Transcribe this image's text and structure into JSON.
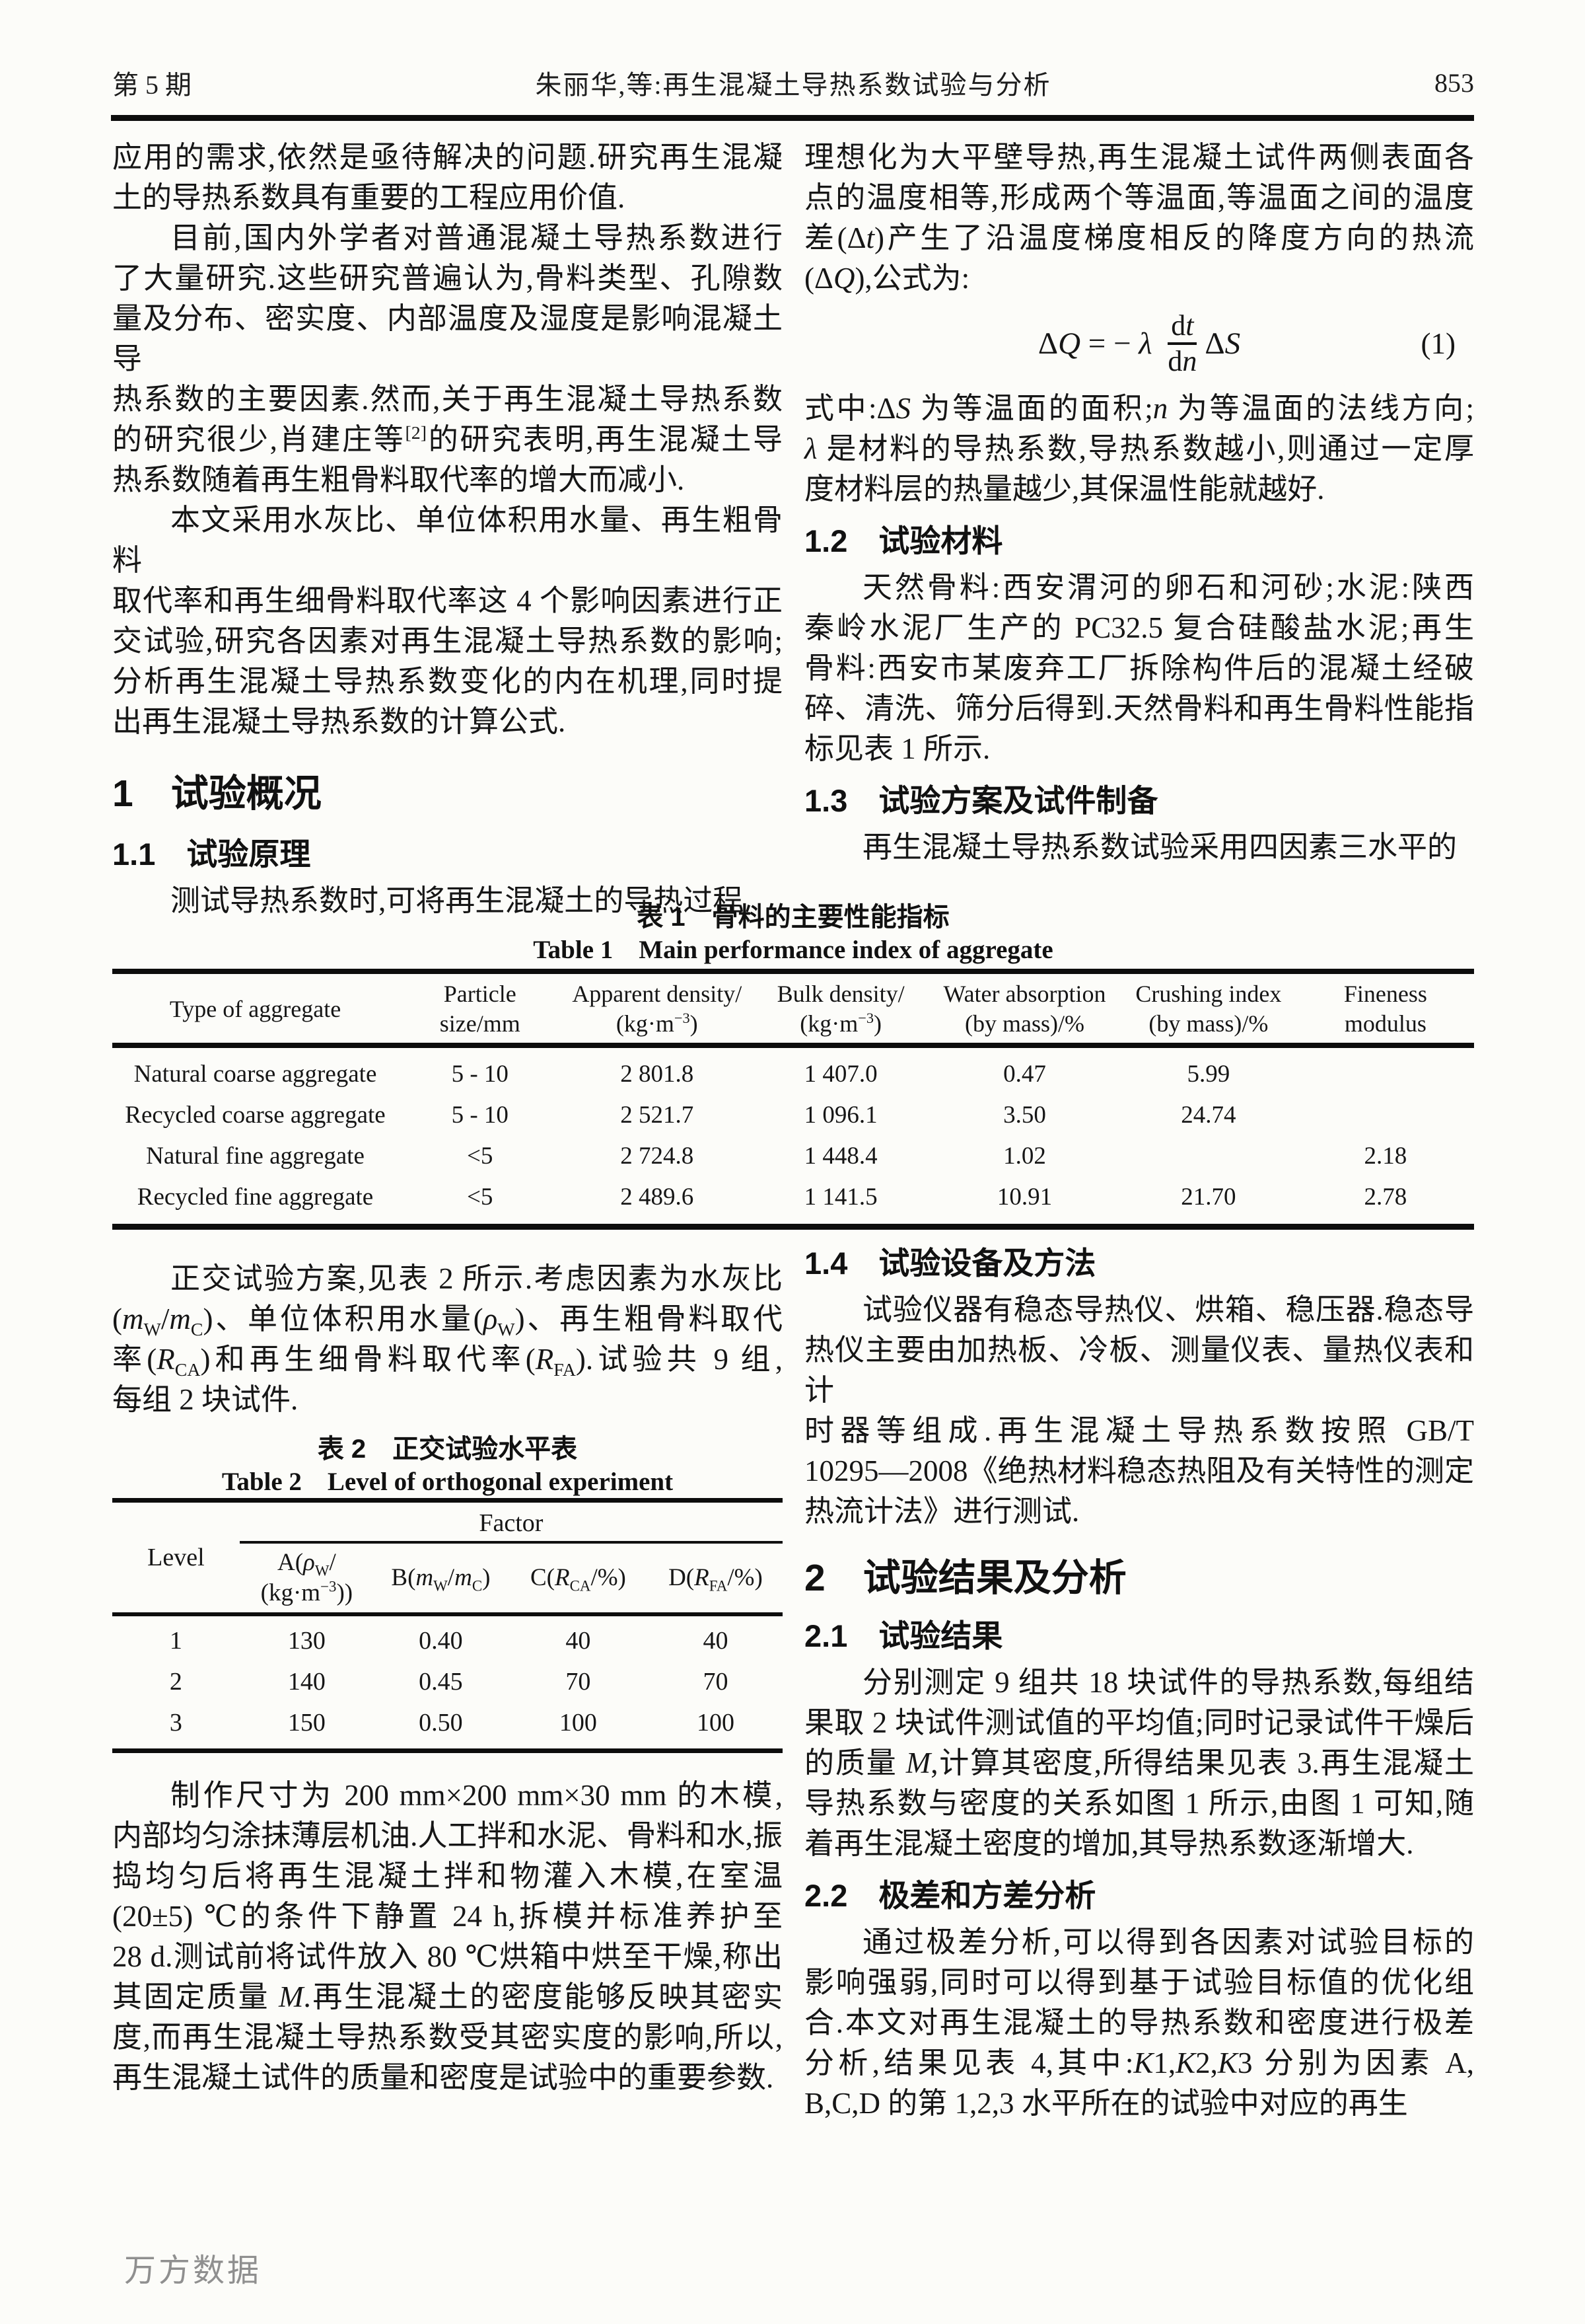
{
  "header": {
    "issue": "第 5 期",
    "title": "朱丽华,等:再生混凝土导热系数试验与分析",
    "page_number": "853"
  },
  "left_top": {
    "p1": [
      "应用的需求,依然是亟待解决的问题.研究再生混凝",
      "土的导热系数具有重要的工程应用价值."
    ],
    "p2": [
      "目前,国内外学者对普通混凝土导热系数进行",
      "了大量研究.这些研究普遍认为,骨料类型、孔隙数",
      "量及分布、密实度、内部温度及湿度是影响混凝土导",
      "热系数的主要因素.然而,关于再生混凝土导热系数",
      "的研究很少,肖建庄等^{[2]}的研究表明,再生混凝土导",
      "热系数随着再生粗骨料取代率的增大而减小."
    ],
    "p3": [
      "本文采用水灰比、单位体积用水量、再生粗骨料",
      "取代率和再生细骨料取代率这 4 个影响因素进行正",
      "交试验,研究各因素对再生混凝土导热系数的影响;",
      "分析再生混凝土导热系数变化的内在机理,同时提",
      "出再生混凝土导热系数的计算公式."
    ],
    "h1": "1　试验概况",
    "h11": "1.1　试验原理",
    "p4": [
      "测试导热系数时,可将再生混凝土的导热过程"
    ]
  },
  "right_top": {
    "p1": [
      "理想化为大平壁导热,再生混凝土试件两侧表面各",
      "点的温度相等,形成两个等温面,等温面之间的温度",
      "差(Δ*t*)产生了沿温度梯度相反的降度方向的热流",
      "(Δ*Q*),公式为:"
    ],
    "formula": {
      "lhs": "Δ*Q* = − *λ* ",
      "numerator": "d*t*",
      "denominator": "d*n*",
      "rhs": "Δ*S*",
      "number": "(1)"
    },
    "p2": [
      "式中:Δ*S* 为等温面的面积;*n* 为等温面的法线方向;",
      "*λ* 是材料的导热系数,导热系数越小,则通过一定厚",
      "度材料层的热量越少,其保温性能就越好."
    ],
    "h12": "1.2　试验材料",
    "p3": [
      "天然骨料:西安渭河的卵石和河砂;水泥:陕西",
      "秦岭水泥厂生产的 PC32.5 复合硅酸盐水泥;再生",
      "骨料:西安市某废弃工厂拆除构件后的混凝土经破",
      "碎、清洗、筛分后得到.天然骨料和再生骨料性能指",
      "标见表 1 所示."
    ],
    "h13": "1.3　试验方案及试件制备",
    "p4": [
      "再生混凝土导热系数试验采用四因素三水平的"
    ]
  },
  "table1": {
    "title_zh": "表 1　骨料的主要性能指标",
    "title_en": "Table 1　Main performance index of aggregate",
    "headers": [
      [
        "Type of aggregate",
        ""
      ],
      [
        "Particle",
        "size/mm"
      ],
      [
        "Apparent density/",
        "(kg·m^{−3})"
      ],
      [
        "Bulk density/",
        "(kg·m^{−3})"
      ],
      [
        "Water absorption",
        "(by mass)/%"
      ],
      [
        "Crushing index",
        "(by mass)/%"
      ],
      [
        "Fineness",
        "modulus"
      ]
    ],
    "rows": [
      [
        "Natural coarse aggregate",
        "5 - 10",
        "2 801.8",
        "1 407.0",
        "0.47",
        "5.99",
        ""
      ],
      [
        "Recycled coarse aggregate",
        "5 - 10",
        "2 521.7",
        "1 096.1",
        "3.50",
        "24.74",
        ""
      ],
      [
        "Natural fine aggregate",
        "<5",
        "2 724.8",
        "1 448.4",
        "1.02",
        "",
        "2.18"
      ],
      [
        "Recycled fine aggregate",
        "<5",
        "2 489.6",
        "1 141.5",
        "10.91",
        "21.70",
        "2.78"
      ]
    ]
  },
  "left_bottom": {
    "p1": [
      "正交试验方案,见表 2 所示.考虑因素为水灰比",
      "(*m*_{W}/*m*_{C})、单位体积用水量(*ρ*_{W})、再生粗骨料取代",
      "率(*R*_{CA})和再生细骨料取代率(*R*_{FA}).试验共 9 组,",
      "每组 2 块试件."
    ],
    "table2": {
      "title_zh": "表 2　正交试验水平表",
      "title_en": "Table 2　Level of orthogonal experiment",
      "level_label": "Level",
      "factor_label": "Factor",
      "col_headers": [
        [
          "A(*ρ*_{W}/",
          "(kg·m^{−3}))"
        ],
        [
          "B(*m*_{W}/*m*_{C})",
          ""
        ],
        [
          "C(*R*_{CA}/%)",
          ""
        ],
        [
          "D(*R*_{FA}/%)",
          ""
        ]
      ],
      "rows": [
        [
          "1",
          "130",
          "0.40",
          "40",
          "40"
        ],
        [
          "2",
          "140",
          "0.45",
          "70",
          "70"
        ],
        [
          "3",
          "150",
          "0.50",
          "100",
          "100"
        ]
      ]
    },
    "p2": [
      "制作尺寸为 200 mm×200 mm×30 mm 的木模,",
      "内部均匀涂抹薄层机油.人工拌和水泥、骨料和水,振",
      "捣均匀后将再生混凝土拌和物灌入木模,在室温",
      "(20±5) ℃的条件下静置 24 h,拆模并标准养护至",
      "28 d.测试前将试件放入 80 ℃烘箱中烘至干燥,称出",
      "其固定质量 *M*.再生混凝土的密度能够反映其密实",
      "度,而再生混凝土导热系数受其密实度的影响,所以,",
      "再生混凝土试件的质量和密度是试验中的重要参数."
    ]
  },
  "right_bottom": {
    "h14": "1.4　试验设备及方法",
    "p1": [
      "试验仪器有稳态导热仪、烘箱、稳压器.稳态导",
      "热仪主要由加热板、冷板、测量仪表、量热仪表和计",
      "时器等组成.再生混凝土导热系数按照 GB/T",
      "10295—2008《绝热材料稳态热阻及有关特性的测定",
      "热流计法》进行测试."
    ],
    "h2": "2　试验结果及分析",
    "h21": "2.1　试验结果",
    "p2": [
      "分别测定 9 组共 18 块试件的导热系数,每组结",
      "果取 2 块试件测试值的平均值;同时记录试件干燥后",
      "的质量 *M*,计算其密度,所得结果见表 3.再生混凝土",
      "导热系数与密度的关系如图 1 所示,由图 1 可知,随",
      "着再生混凝土密度的增加,其导热系数逐渐增大."
    ],
    "h22": "2.2　极差和方差分析",
    "p3": [
      "通过极差分析,可以得到各因素对试验目标的",
      "影响强弱,同时可以得到基于试验目标值的优化组",
      "合.本文对再生混凝土的导热系数和密度进行极差",
      "分析,结果见表 4,其中:*K*1,*K*2,*K*3 分别为因素 A,",
      "B,C,D 的第 1,2,3 水平所在的试验中对应的再生"
    ]
  },
  "watermark": "万方数据"
}
